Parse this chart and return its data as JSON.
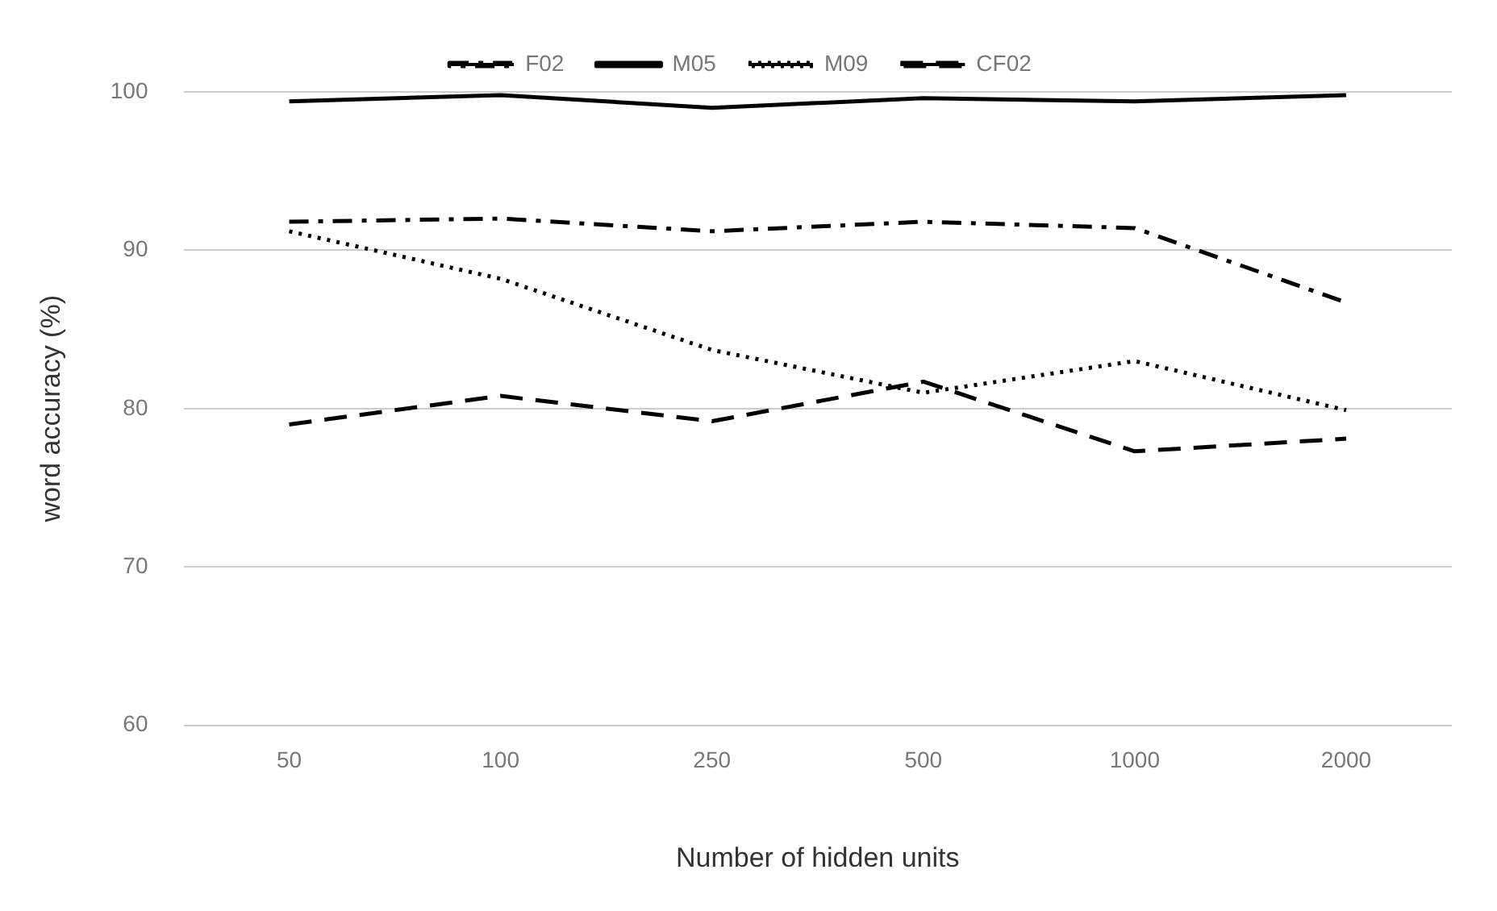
{
  "chart_data": {
    "type": "line",
    "xlabel": "Number of hidden units",
    "ylabel": "word accuracy (%)",
    "categories": [
      "50",
      "100",
      "250",
      "500",
      "1000",
      "2000"
    ],
    "series": [
      {
        "name": "F02",
        "color": "#000000",
        "line_style": "dashdot",
        "values": [
          91.8,
          92.0,
          91.2,
          91.8,
          91.4,
          86.7
        ]
      },
      {
        "name": "M05",
        "color": "#000000",
        "line_style": "solid",
        "values": [
          99.4,
          99.8,
          99.0,
          99.6,
          99.4,
          99.8
        ]
      },
      {
        "name": "M09",
        "color": "#000000",
        "line_style": "dotted",
        "values": [
          91.2,
          88.2,
          83.7,
          81.0,
          83.0,
          79.9
        ]
      },
      {
        "name": "CF02",
        "color": "#000000",
        "line_style": "dashed",
        "values": [
          79.0,
          80.8,
          79.2,
          81.7,
          77.3,
          78.1
        ]
      }
    ],
    "ylim": [
      60,
      100
    ],
    "yticks": [
      60,
      70,
      80,
      90,
      100
    ],
    "grid": "y",
    "legend": "top",
    "marker": "none"
  }
}
